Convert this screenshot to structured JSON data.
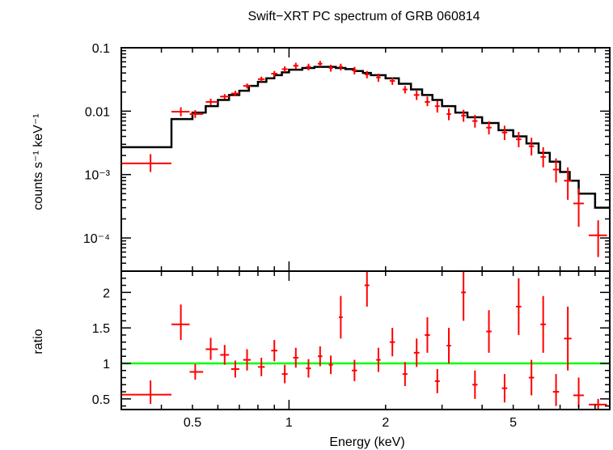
{
  "chart_data": [
    {
      "type": "scatter",
      "title": "Swift−XRT PC spectrum of GRB 060814",
      "xlabel": "",
      "ylabel": "counts s⁻¹ keV⁻¹",
      "x_scale": "log",
      "y_scale": "log",
      "xlim": [
        0.3,
        10
      ],
      "ylim": [
        3e-05,
        0.1
      ],
      "y_ticks": [
        {
          "value": 0.1,
          "label": "0.1"
        },
        {
          "value": 0.01,
          "label": "0.01"
        },
        {
          "value": 0.001,
          "label": "10⁻³"
        },
        {
          "value": 0.0001,
          "label": "10⁻⁴"
        }
      ],
      "model_color": "#000000",
      "data_color": "#ff0000",
      "model_steps": [
        [
          0.3,
          0.0027
        ],
        [
          0.43,
          0.0075
        ],
        [
          0.5,
          0.0095
        ],
        [
          0.55,
          0.012
        ],
        [
          0.6,
          0.015
        ],
        [
          0.65,
          0.018
        ],
        [
          0.7,
          0.021
        ],
        [
          0.75,
          0.025
        ],
        [
          0.8,
          0.029
        ],
        [
          0.85,
          0.033
        ],
        [
          0.9,
          0.037
        ],
        [
          0.95,
          0.041
        ],
        [
          1.0,
          0.045
        ],
        [
          1.1,
          0.048
        ],
        [
          1.2,
          0.05
        ],
        [
          1.3,
          0.05
        ],
        [
          1.4,
          0.048
        ],
        [
          1.5,
          0.046
        ],
        [
          1.6,
          0.043
        ],
        [
          1.7,
          0.04
        ],
        [
          1.8,
          0.037
        ],
        [
          2.0,
          0.033
        ],
        [
          2.2,
          0.027
        ],
        [
          2.4,
          0.022
        ],
        [
          2.6,
          0.018
        ],
        [
          2.8,
          0.015
        ],
        [
          3.0,
          0.012
        ],
        [
          3.3,
          0.0095
        ],
        [
          3.6,
          0.008
        ],
        [
          4.0,
          0.0065
        ],
        [
          4.5,
          0.005
        ],
        [
          5.0,
          0.004
        ],
        [
          5.5,
          0.0031
        ],
        [
          6.0,
          0.0022
        ],
        [
          6.5,
          0.0016
        ],
        [
          7.0,
          0.0011
        ],
        [
          7.5,
          0.0008
        ],
        [
          8.0,
          0.0005
        ],
        [
          9.0,
          0.0003
        ],
        [
          10.0,
          0.0003
        ]
      ],
      "points": [
        {
          "x": 0.37,
          "xlo": 0.3,
          "xhi": 0.43,
          "y": 0.0015,
          "ylo": 0.0011,
          "yhi": 0.0021
        },
        {
          "x": 0.46,
          "xlo": 0.43,
          "xhi": 0.49,
          "y": 0.0098,
          "ylo": 0.0083,
          "yhi": 0.0115
        },
        {
          "x": 0.51,
          "xlo": 0.49,
          "xhi": 0.54,
          "y": 0.009,
          "ylo": 0.0078,
          "yhi": 0.0104
        },
        {
          "x": 0.57,
          "xlo": 0.55,
          "xhi": 0.6,
          "y": 0.014,
          "ylo": 0.0125,
          "yhi": 0.0157
        },
        {
          "x": 0.63,
          "xlo": 0.61,
          "xhi": 0.65,
          "y": 0.017,
          "ylo": 0.0155,
          "yhi": 0.0186
        },
        {
          "x": 0.68,
          "xlo": 0.66,
          "xhi": 0.7,
          "y": 0.019,
          "ylo": 0.0172,
          "yhi": 0.0209
        },
        {
          "x": 0.74,
          "xlo": 0.72,
          "xhi": 0.76,
          "y": 0.025,
          "ylo": 0.0228,
          "yhi": 0.0273
        },
        {
          "x": 0.82,
          "xlo": 0.8,
          "xhi": 0.84,
          "y": 0.032,
          "ylo": 0.029,
          "yhi": 0.035
        },
        {
          "x": 0.9,
          "xlo": 0.88,
          "xhi": 0.92,
          "y": 0.039,
          "ylo": 0.035,
          "yhi": 0.043
        },
        {
          "x": 0.97,
          "xlo": 0.95,
          "xhi": 0.99,
          "y": 0.046,
          "ylo": 0.041,
          "yhi": 0.051
        },
        {
          "x": 1.05,
          "xlo": 1.03,
          "xhi": 1.07,
          "y": 0.052,
          "ylo": 0.046,
          "yhi": 0.058
        },
        {
          "x": 1.15,
          "xlo": 1.13,
          "xhi": 1.17,
          "y": 0.05,
          "ylo": 0.044,
          "yhi": 0.056
        },
        {
          "x": 1.25,
          "xlo": 1.23,
          "xhi": 1.27,
          "y": 0.056,
          "ylo": 0.05,
          "yhi": 0.062
        },
        {
          "x": 1.35,
          "xlo": 1.33,
          "xhi": 1.37,
          "y": 0.048,
          "ylo": 0.042,
          "yhi": 0.054
        },
        {
          "x": 1.45,
          "xlo": 1.43,
          "xhi": 1.47,
          "y": 0.05,
          "ylo": 0.044,
          "yhi": 0.056
        },
        {
          "x": 1.6,
          "xlo": 1.57,
          "xhi": 1.63,
          "y": 0.044,
          "ylo": 0.038,
          "yhi": 0.05
        },
        {
          "x": 1.75,
          "xlo": 1.72,
          "xhi": 1.78,
          "y": 0.038,
          "ylo": 0.033,
          "yhi": 0.043
        },
        {
          "x": 1.9,
          "xlo": 1.87,
          "xhi": 1.93,
          "y": 0.034,
          "ylo": 0.029,
          "yhi": 0.039
        },
        {
          "x": 2.1,
          "xlo": 2.06,
          "xhi": 2.14,
          "y": 0.03,
          "ylo": 0.026,
          "yhi": 0.034
        },
        {
          "x": 2.3,
          "xlo": 2.26,
          "xhi": 2.34,
          "y": 0.022,
          "ylo": 0.019,
          "yhi": 0.025
        },
        {
          "x": 2.5,
          "xlo": 2.45,
          "xhi": 2.55,
          "y": 0.018,
          "ylo": 0.015,
          "yhi": 0.021
        },
        {
          "x": 2.7,
          "xlo": 2.65,
          "xhi": 2.75,
          "y": 0.014,
          "ylo": 0.012,
          "yhi": 0.017
        },
        {
          "x": 2.9,
          "xlo": 2.85,
          "xhi": 2.95,
          "y": 0.012,
          "ylo": 0.0095,
          "yhi": 0.0145
        },
        {
          "x": 3.15,
          "xlo": 3.1,
          "xhi": 3.2,
          "y": 0.009,
          "ylo": 0.0072,
          "yhi": 0.011
        },
        {
          "x": 3.5,
          "xlo": 3.44,
          "xhi": 3.56,
          "y": 0.0085,
          "ylo": 0.0068,
          "yhi": 0.0105
        },
        {
          "x": 3.8,
          "xlo": 3.73,
          "xhi": 3.87,
          "y": 0.007,
          "ylo": 0.0055,
          "yhi": 0.0087
        },
        {
          "x": 4.2,
          "xlo": 4.12,
          "xhi": 4.28,
          "y": 0.0055,
          "ylo": 0.0043,
          "yhi": 0.0069
        },
        {
          "x": 4.7,
          "xlo": 4.61,
          "xhi": 4.79,
          "y": 0.0046,
          "ylo": 0.0035,
          "yhi": 0.0059
        },
        {
          "x": 5.2,
          "xlo": 5.1,
          "xhi": 5.3,
          "y": 0.0036,
          "ylo": 0.0027,
          "yhi": 0.0047
        },
        {
          "x": 5.7,
          "xlo": 5.59,
          "xhi": 5.81,
          "y": 0.0028,
          "ylo": 0.002,
          "yhi": 0.0038
        },
        {
          "x": 6.2,
          "xlo": 6.08,
          "xhi": 6.32,
          "y": 0.0019,
          "ylo": 0.0013,
          "yhi": 0.0027
        },
        {
          "x": 6.8,
          "xlo": 6.65,
          "xhi": 6.95,
          "y": 0.0012,
          "ylo": 0.00075,
          "yhi": 0.0018
        },
        {
          "x": 7.4,
          "xlo": 7.2,
          "xhi": 7.6,
          "y": 0.0008,
          "ylo": 0.0004,
          "yhi": 0.0013
        },
        {
          "x": 8.0,
          "xlo": 7.7,
          "xhi": 8.3,
          "y": 0.00035,
          "ylo": 0.00015,
          "yhi": 0.0006
        },
        {
          "x": 9.2,
          "xlo": 8.6,
          "xhi": 9.8,
          "y": 0.00011,
          "ylo": 5e-05,
          "yhi": 0.00019
        }
      ]
    },
    {
      "type": "scatter",
      "xlabel": "Energy (keV)",
      "ylabel": "ratio",
      "x_scale": "log",
      "xlim": [
        0.3,
        10
      ],
      "ylim": [
        0.35,
        2.3
      ],
      "x_ticks": [
        {
          "value": 0.5,
          "label": "0.5"
        },
        {
          "value": 1,
          "label": "1"
        },
        {
          "value": 2,
          "label": "2"
        },
        {
          "value": 5,
          "label": "5"
        }
      ],
      "y_ticks": [
        {
          "value": 0.5,
          "label": "0.5"
        },
        {
          "value": 1,
          "label": "1"
        },
        {
          "value": 1.5,
          "label": "1.5"
        },
        {
          "value": 2,
          "label": "2"
        }
      ],
      "reference_line": {
        "y": 1,
        "color": "#00ff00"
      },
      "data_color": "#ff0000",
      "points": [
        {
          "x": 0.37,
          "xlo": 0.3,
          "xhi": 0.43,
          "y": 0.56,
          "ylo": 0.43,
          "yhi": 0.76
        },
        {
          "x": 0.46,
          "xlo": 0.43,
          "xhi": 0.49,
          "y": 1.55,
          "ylo": 1.33,
          "yhi": 1.83
        },
        {
          "x": 0.51,
          "xlo": 0.49,
          "xhi": 0.54,
          "y": 0.88,
          "ylo": 0.77,
          "yhi": 0.99
        },
        {
          "x": 0.57,
          "xlo": 0.55,
          "xhi": 0.6,
          "y": 1.2,
          "ylo": 1.05,
          "yhi": 1.36
        },
        {
          "x": 0.63,
          "xlo": 0.61,
          "xhi": 0.65,
          "y": 1.12,
          "ylo": 0.98,
          "yhi": 1.26
        },
        {
          "x": 0.68,
          "xlo": 0.66,
          "xhi": 0.7,
          "y": 0.92,
          "ylo": 0.8,
          "yhi": 1.04
        },
        {
          "x": 0.74,
          "xlo": 0.72,
          "xhi": 0.76,
          "y": 1.05,
          "ylo": 0.9,
          "yhi": 1.2
        },
        {
          "x": 0.82,
          "xlo": 0.8,
          "xhi": 0.84,
          "y": 0.95,
          "ylo": 0.82,
          "yhi": 1.08
        },
        {
          "x": 0.9,
          "xlo": 0.88,
          "xhi": 0.92,
          "y": 1.18,
          "ylo": 1.03,
          "yhi": 1.33
        },
        {
          "x": 0.97,
          "xlo": 0.95,
          "xhi": 0.99,
          "y": 0.85,
          "ylo": 0.72,
          "yhi": 0.98
        },
        {
          "x": 1.05,
          "xlo": 1.03,
          "xhi": 1.07,
          "y": 1.08,
          "ylo": 0.94,
          "yhi": 1.22
        },
        {
          "x": 1.15,
          "xlo": 1.13,
          "xhi": 1.17,
          "y": 0.93,
          "ylo": 0.8,
          "yhi": 1.06
        },
        {
          "x": 1.25,
          "xlo": 1.23,
          "xhi": 1.27,
          "y": 1.1,
          "ylo": 0.96,
          "yhi": 1.24
        },
        {
          "x": 1.35,
          "xlo": 1.33,
          "xhi": 1.37,
          "y": 0.98,
          "ylo": 0.85,
          "yhi": 1.11
        },
        {
          "x": 1.45,
          "xlo": 1.43,
          "xhi": 1.47,
          "y": 1.65,
          "ylo": 1.35,
          "yhi": 1.95
        },
        {
          "x": 1.6,
          "xlo": 1.57,
          "xhi": 1.63,
          "y": 0.9,
          "ylo": 0.75,
          "yhi": 1.05
        },
        {
          "x": 1.75,
          "xlo": 1.72,
          "xhi": 1.78,
          "y": 2.1,
          "ylo": 1.8,
          "yhi": 2.3
        },
        {
          "x": 1.9,
          "xlo": 1.87,
          "xhi": 1.93,
          "y": 1.05,
          "ylo": 0.88,
          "yhi": 1.22
        },
        {
          "x": 2.1,
          "xlo": 2.06,
          "xhi": 2.14,
          "y": 1.3,
          "ylo": 1.1,
          "yhi": 1.5
        },
        {
          "x": 2.3,
          "xlo": 2.26,
          "xhi": 2.34,
          "y": 0.85,
          "ylo": 0.68,
          "yhi": 1.02
        },
        {
          "x": 2.5,
          "xlo": 2.45,
          "xhi": 2.55,
          "y": 1.15,
          "ylo": 0.95,
          "yhi": 1.35
        },
        {
          "x": 2.7,
          "xlo": 2.65,
          "xhi": 2.75,
          "y": 1.4,
          "ylo": 1.15,
          "yhi": 1.65
        },
        {
          "x": 2.9,
          "xlo": 2.85,
          "xhi": 2.95,
          "y": 0.75,
          "ylo": 0.58,
          "yhi": 0.92
        },
        {
          "x": 3.15,
          "xlo": 3.1,
          "xhi": 3.2,
          "y": 1.25,
          "ylo": 1.0,
          "yhi": 1.5
        },
        {
          "x": 3.5,
          "xlo": 3.44,
          "xhi": 3.56,
          "y": 2.0,
          "ylo": 1.6,
          "yhi": 2.3
        },
        {
          "x": 3.8,
          "xlo": 3.73,
          "xhi": 3.87,
          "y": 0.7,
          "ylo": 0.5,
          "yhi": 0.9
        },
        {
          "x": 4.2,
          "xlo": 4.12,
          "xhi": 4.28,
          "y": 1.45,
          "ylo": 1.15,
          "yhi": 1.75
        },
        {
          "x": 4.7,
          "xlo": 4.61,
          "xhi": 4.79,
          "y": 0.65,
          "ylo": 0.45,
          "yhi": 0.85
        },
        {
          "x": 5.2,
          "xlo": 5.1,
          "xhi": 5.3,
          "y": 1.8,
          "ylo": 1.4,
          "yhi": 2.2
        },
        {
          "x": 5.7,
          "xlo": 5.59,
          "xhi": 5.81,
          "y": 0.8,
          "ylo": 0.55,
          "yhi": 1.05
        },
        {
          "x": 6.2,
          "xlo": 6.08,
          "xhi": 6.32,
          "y": 1.55,
          "ylo": 1.15,
          "yhi": 1.95
        },
        {
          "x": 6.8,
          "xlo": 6.65,
          "xhi": 6.95,
          "y": 0.6,
          "ylo": 0.4,
          "yhi": 0.85
        },
        {
          "x": 7.4,
          "xlo": 7.2,
          "xhi": 7.6,
          "y": 1.35,
          "ylo": 0.9,
          "yhi": 1.8
        },
        {
          "x": 8.0,
          "xlo": 7.7,
          "xhi": 8.3,
          "y": 0.55,
          "ylo": 0.38,
          "yhi": 0.8
        },
        {
          "x": 9.2,
          "xlo": 8.6,
          "xhi": 9.8,
          "y": 0.42,
          "ylo": 0.36,
          "yhi": 0.5
        }
      ]
    }
  ]
}
